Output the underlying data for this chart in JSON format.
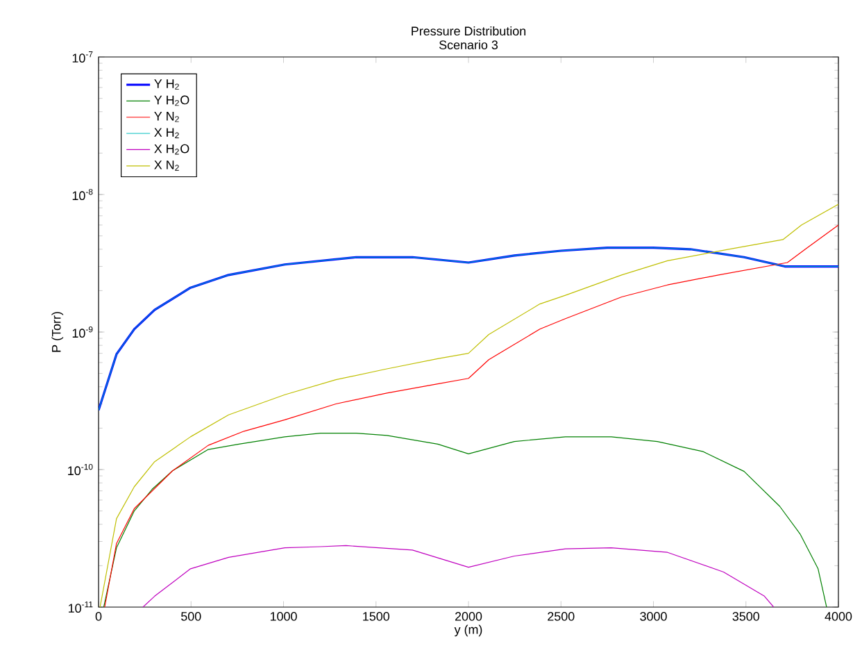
{
  "chart_data": {
    "type": "line",
    "title": "Pressure Distribution",
    "subtitle": "Scenario 3",
    "xlabel": "y (m)",
    "ylabel": "P (Torr)",
    "log": "y",
    "legend": "top left",
    "grid": false,
    "xlim": [
      0,
      4000
    ],
    "xticks": [
      0,
      500,
      1000,
      1500,
      2000,
      2500,
      3000,
      3500,
      4000
    ],
    "ylim": [
      1e-11,
      1e-07
    ],
    "yticks": [
      {
        "value": 1e-11,
        "label": "10$^{-11}$"
      },
      {
        "value": 1e-10,
        "label": "10$^{-10}$"
      },
      {
        "value": 1e-09,
        "label": "10$^{-9}$"
      },
      {
        "value": 1e-08,
        "label": "10$^{-8}$"
      },
      {
        "value": 1e-07,
        "label": "10$^{-7}$"
      }
    ],
    "series": [
      {
        "name": "Y H$_{2}$",
        "color": "#0000ff",
        "x": [
          0,
          97,
          193,
          303,
          497,
          703,
          1007,
          1393,
          1697,
          2000,
          2248,
          2500,
          2750,
          3000,
          3200,
          3490,
          3710,
          4000
        ],
        "values": [
          2.7e-10,
          6.9e-10,
          1.05e-09,
          1.45e-09,
          2.1e-09,
          2.6e-09,
          3.1e-09,
          3.5e-09,
          3.5e-09,
          3.2e-09,
          3.6e-09,
          3.9e-09,
          4.1e-09,
          4.1e-09,
          4e-09,
          3.5e-09,
          3e-09,
          3e-09
        ]
      },
      {
        "name": "Y H$_{2}$O",
        "color": "#008000",
        "x": [
          28,
          97,
          193,
          290,
          400,
          593,
          759,
          1007,
          1200,
          1393,
          1559,
          1834,
          2000,
          2248,
          2524,
          2772,
          3021,
          3269,
          3490,
          3683,
          3793,
          3890,
          3936
        ],
        "values": [
          1e-11,
          2.7e-11,
          5e-11,
          7.2e-11,
          9.8e-11,
          1.4e-10,
          1.53e-10,
          1.73e-10,
          1.84e-10,
          1.84e-10,
          1.77e-10,
          1.53e-10,
          1.3e-10,
          1.6e-10,
          1.73e-10,
          1.73e-10,
          1.6e-10,
          1.35e-10,
          9.7e-11,
          5.4e-11,
          3.4e-11,
          1.9e-11,
          1e-11
        ]
      },
      {
        "name": "Y N$_{2}$",
        "color": "#ff0000",
        "x": [
          33,
          97,
          193,
          400,
          593,
          786,
          1007,
          1283,
          1559,
          1834,
          2000,
          2110,
          2386,
          2524,
          2828,
          3076,
          3352,
          3724,
          3821,
          4000
        ],
        "values": [
          1e-11,
          2.9e-11,
          5.2e-11,
          9.8e-11,
          1.5e-10,
          1.9e-10,
          2.3e-10,
          3e-10,
          3.6e-10,
          4.2e-10,
          4.6e-10,
          6.3e-10,
          1.05e-09,
          1.25e-09,
          1.8e-09,
          2.2e-09,
          2.6e-09,
          3.2e-09,
          4e-09,
          6e-09
        ]
      },
      {
        "name": "X H$_{2}$",
        "color": "#00bfbf",
        "x": [
          0,
          97,
          193,
          303,
          497,
          703,
          1007,
          1393,
          1697,
          2000,
          2248,
          2500,
          2750,
          3000,
          3200,
          3490,
          3710,
          4000
        ],
        "values": [
          2.7e-10,
          6.9e-10,
          1.05e-09,
          1.45e-09,
          2.1e-09,
          2.6e-09,
          3.1e-09,
          3.5e-09,
          3.5e-09,
          3.2e-09,
          3.6e-09,
          3.9e-09,
          4.1e-09,
          4.1e-09,
          4e-09,
          3.5e-09,
          3e-09,
          3e-09
        ]
      },
      {
        "name": "X H$_{2}$O",
        "color": "#bf00bf",
        "x": [
          240,
          303,
          497,
          703,
          1007,
          1200,
          1338,
          1697,
          2000,
          2248,
          2524,
          2772,
          3076,
          3379,
          3600,
          3650
        ],
        "values": [
          1e-11,
          1.2e-11,
          1.9e-11,
          2.3e-11,
          2.7e-11,
          2.75e-11,
          2.8e-11,
          2.6e-11,
          1.95e-11,
          2.35e-11,
          2.65e-11,
          2.7e-11,
          2.5e-11,
          1.8e-11,
          1.2e-11,
          1e-11
        ]
      },
      {
        "name": "X N$_{2}$",
        "color": "#bfbf00",
        "x": [
          8,
          97,
          193,
          303,
          497,
          703,
          1007,
          1283,
          1559,
          1834,
          2000,
          2110,
          2386,
          2524,
          2828,
          3076,
          3407,
          3700,
          3800,
          4000
        ],
        "values": [
          1e-11,
          4.4e-11,
          7.5e-11,
          1.14e-10,
          1.73e-10,
          2.5e-10,
          3.5e-10,
          4.5e-10,
          5.4e-10,
          6.4e-10,
          7e-10,
          9.6e-10,
          1.6e-09,
          1.85e-09,
          2.6e-09,
          3.3e-09,
          4e-09,
          4.7e-09,
          6e-09,
          8.5e-09
        ]
      }
    ]
  }
}
